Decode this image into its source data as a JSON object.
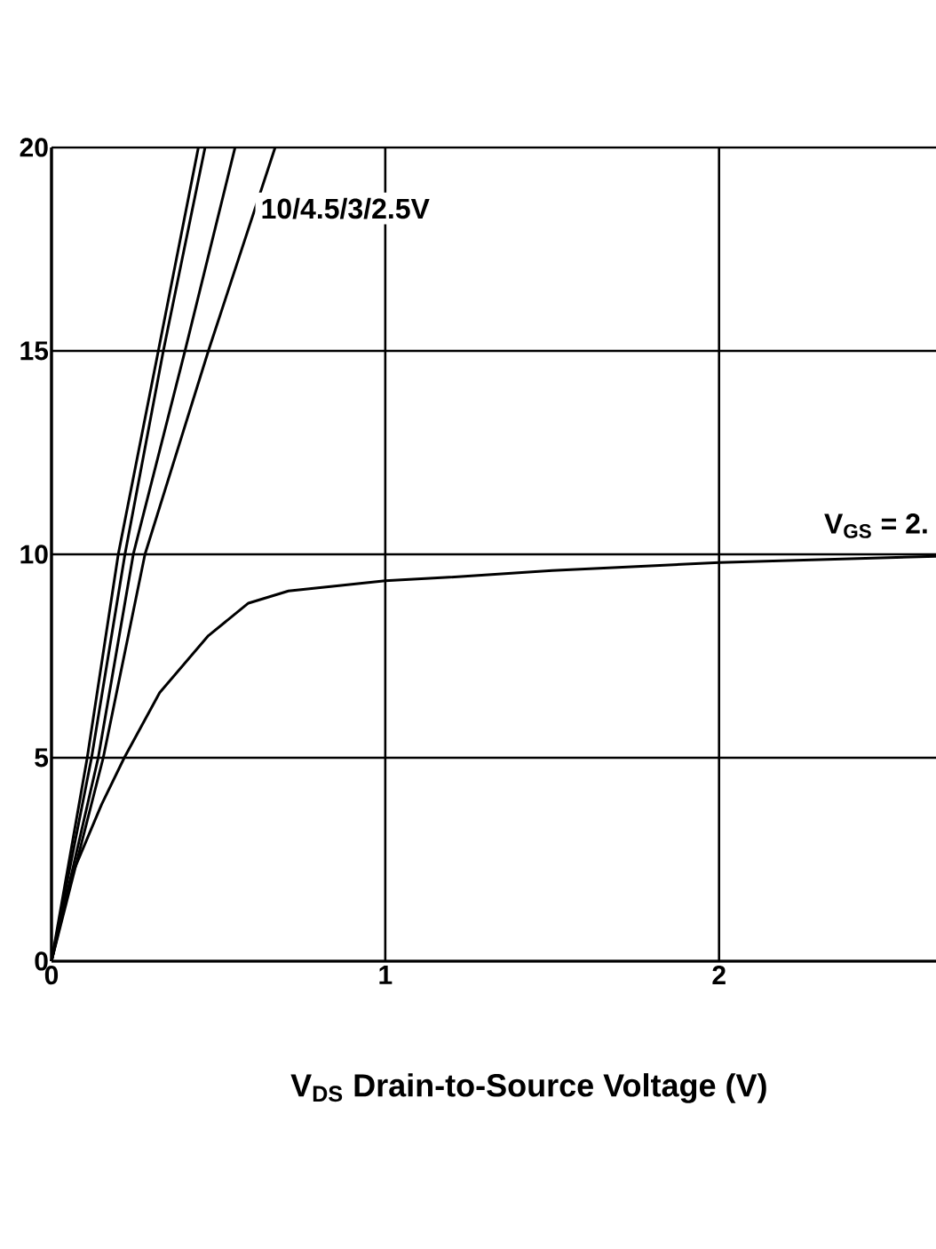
{
  "chart_data": {
    "type": "line",
    "xlabel": "V$_{DS}$ Drain-to-Source Voltage (V)",
    "annotations": [
      "10/4.5/3/2.5V",
      "V$_{GS}$ = 2."
    ],
    "xlim": [
      0,
      2.65
    ],
    "ylim": [
      0,
      20
    ],
    "xticks": [
      0,
      1,
      2
    ],
    "yticks": [
      0,
      5,
      10,
      15,
      20
    ],
    "grid": true,
    "series": [
      {
        "color": "#000000",
        "x": [
          0,
          0.107,
          0.2,
          0.32,
          0.44
        ],
        "values": [
          0,
          5,
          10,
          15,
          20
        ]
      },
      {
        "color": "#000000",
        "x": [
          0,
          0.12,
          0.22,
          0.335,
          0.46
        ],
        "values": [
          0,
          5,
          10,
          15,
          20
        ]
      },
      {
        "color": "#000000",
        "x": [
          0,
          0.14,
          0.245,
          0.4,
          0.55
        ],
        "values": [
          0,
          5,
          10,
          15,
          20
        ]
      },
      {
        "color": "#000000",
        "x": [
          0,
          0.155,
          0.28,
          0.47,
          0.67
        ],
        "values": [
          0,
          5,
          10,
          15,
          20
        ]
      },
      {
        "color": "#000000",
        "x": [
          0,
          0.06,
          0.15,
          0.218,
          0.324,
          0.47,
          0.59,
          0.71,
          1.0,
          1.18,
          1.5,
          2.0,
          2.65
        ],
        "values": [
          0,
          2.1,
          3.85,
          5.0,
          6.6,
          8.0,
          8.8,
          9.1,
          9.35,
          9.43,
          9.6,
          9.8,
          9.95
        ]
      }
    ]
  }
}
